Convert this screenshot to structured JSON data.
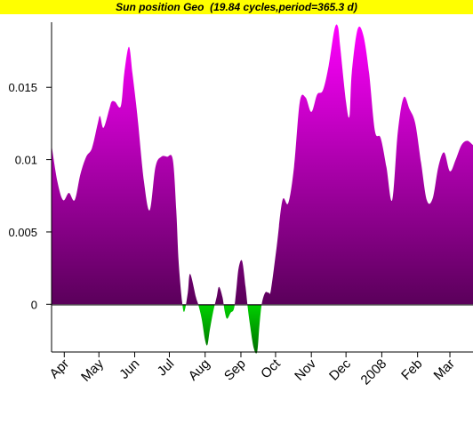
{
  "title": "Sun position Geo  (19.84 cycles,period=365.3 d)",
  "colors": {
    "title_background": "#ffff00",
    "positive_top": "#ff00ff",
    "positive_bottom": "#5a005a",
    "negative_top": "#00d000",
    "negative_bottom": "#007000",
    "axis": "#000000"
  },
  "chart_data": {
    "type": "area",
    "title": "Sun position Geo  (19.84 cycles,period=365.3 d)",
    "xlabel": "",
    "ylabel": "",
    "xlim": [
      0,
      365
    ],
    "ylim": [
      -0.0033,
      0.0195
    ],
    "grid": false,
    "legend": "none",
    "y_ticks": [
      {
        "value": 0,
        "label": "0"
      },
      {
        "value": 0.005,
        "label": "0.005"
      },
      {
        "value": 0.01,
        "label": "0.01"
      },
      {
        "value": 0.015,
        "label": "0.015"
      }
    ],
    "x_ticks": [
      {
        "value": 11,
        "label": "Apr"
      },
      {
        "value": 41,
        "label": "May"
      },
      {
        "value": 72,
        "label": "Jun"
      },
      {
        "value": 102,
        "label": "Jul"
      },
      {
        "value": 133,
        "label": "Aug"
      },
      {
        "value": 164,
        "label": "Sep"
      },
      {
        "value": 194,
        "label": "Oct"
      },
      {
        "value": 225,
        "label": "Nov"
      },
      {
        "value": 255,
        "label": "Dec"
      },
      {
        "value": 286,
        "label": "2008"
      },
      {
        "value": 317,
        "label": "Feb"
      },
      {
        "value": 345,
        "label": "Mar"
      }
    ],
    "x": [
      0,
      5,
      10,
      15,
      20,
      25,
      30,
      35,
      40,
      42,
      45,
      50,
      52,
      55,
      60,
      63,
      67,
      70,
      73,
      75,
      80,
      85,
      90,
      95,
      100,
      105,
      108,
      110,
      113,
      115,
      118,
      120,
      125,
      127,
      130,
      133,
      135,
      137,
      140,
      143,
      145,
      148,
      150,
      152,
      155,
      158,
      160,
      162,
      165,
      168,
      170,
      172,
      175,
      178,
      180,
      182,
      185,
      188,
      190,
      195,
      200,
      205,
      210,
      215,
      220,
      225,
      230,
      235,
      240,
      245,
      248,
      250,
      255,
      258,
      260,
      265,
      270,
      275,
      280,
      285,
      290,
      295,
      300,
      305,
      310,
      315,
      320,
      325,
      330,
      335,
      340,
      345,
      350,
      355,
      360,
      365
    ],
    "y": [
      0.011,
      0.0085,
      0.0072,
      0.0077,
      0.0072,
      0.009,
      0.0102,
      0.0108,
      0.0125,
      0.013,
      0.0122,
      0.0135,
      0.014,
      0.014,
      0.0137,
      0.016,
      0.0178,
      0.016,
      0.014,
      0.0125,
      0.0085,
      0.0065,
      0.0095,
      0.0102,
      0.0102,
      0.01,
      0.0065,
      0.003,
      0.0002,
      -0.0005,
      0.0008,
      0.0021,
      0.0005,
      0.0,
      -0.001,
      -0.0025,
      -0.0028,
      -0.0018,
      -0.0005,
      0.0005,
      0.0012,
      0.0005,
      -0.0005,
      -0.001,
      -0.0006,
      -0.0003,
      0.001,
      0.0025,
      0.003,
      0.0012,
      -0.0003,
      -0.0015,
      -0.003,
      -0.0033,
      -0.0015,
      0.0,
      0.0008,
      0.0008,
      0.001,
      0.004,
      0.0072,
      0.007,
      0.0095,
      0.014,
      0.0143,
      0.0133,
      0.0145,
      0.0148,
      0.0165,
      0.019,
      0.0192,
      0.0178,
      0.014,
      0.013,
      0.016,
      0.019,
      0.0186,
      0.016,
      0.012,
      0.0115,
      0.0095,
      0.0072,
      0.012,
      0.0143,
      0.0135,
      0.0125,
      0.0098,
      0.0072,
      0.0073,
      0.0095,
      0.0105,
      0.0092,
      0.01,
      0.011,
      0.0113,
      0.011
    ]
  }
}
